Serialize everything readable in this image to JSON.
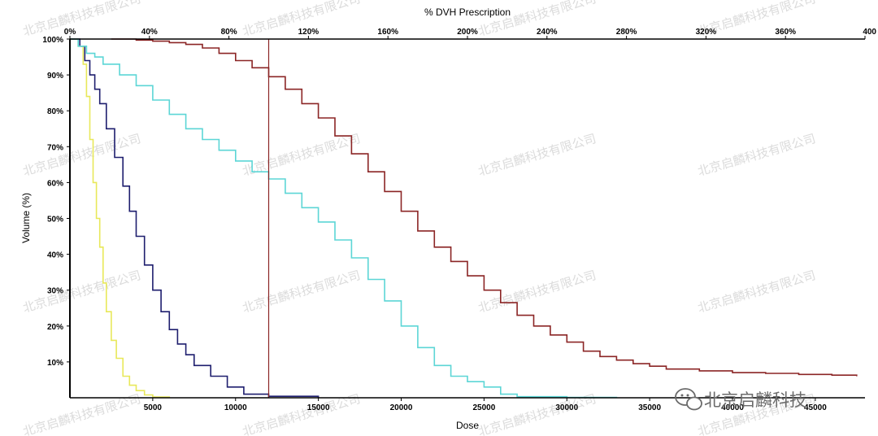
{
  "chart_data": {
    "type": "line",
    "xlabel": "Dose",
    "ylabel": "Volume (%)",
    "top_axis_label": "% DVH Prescription",
    "xlim": [
      0,
      48000
    ],
    "ylim": [
      0,
      100
    ],
    "xticks": [
      {
        "value": 5000,
        "label": "5000"
      },
      {
        "value": 10000,
        "label": "10000"
      },
      {
        "value": 15000,
        "label": "15000"
      },
      {
        "value": 20000,
        "label": "20000"
      },
      {
        "value": 25000,
        "label": "25000"
      },
      {
        "value": 30000,
        "label": "30000"
      },
      {
        "value": 35000,
        "label": "35000"
      },
      {
        "value": 40000,
        "label": "40000"
      },
      {
        "value": 45000,
        "label": "45000"
      }
    ],
    "yticks": [
      {
        "value": 10,
        "label": "10%"
      },
      {
        "value": 20,
        "label": "20%"
      },
      {
        "value": 30,
        "label": "30%"
      },
      {
        "value": 40,
        "label": "40%"
      },
      {
        "value": 50,
        "label": "50%"
      },
      {
        "value": 60,
        "label": "60%"
      },
      {
        "value": 70,
        "label": "70%"
      },
      {
        "value": 80,
        "label": "80%"
      },
      {
        "value": 90,
        "label": "90%"
      },
      {
        "value": 100,
        "label": "100%"
      }
    ],
    "top_ticks": [
      {
        "value": 0,
        "label": "0%"
      },
      {
        "value": 40,
        "label": "40%"
      },
      {
        "value": 80,
        "label": "80%"
      },
      {
        "value": 120,
        "label": "120%"
      },
      {
        "value": 160,
        "label": "160%"
      },
      {
        "value": 200,
        "label": "200%"
      },
      {
        "value": 240,
        "label": "240%"
      },
      {
        "value": 280,
        "label": "280%"
      },
      {
        "value": 320,
        "label": "320%"
      },
      {
        "value": 360,
        "label": "360%"
      },
      {
        "value": 400,
        "label": "400"
      }
    ],
    "top_axis_max_percent": 400,
    "prescription_line": {
      "x": 12000,
      "color": "#8b2525"
    },
    "series": [
      {
        "color": "#e8e85a",
        "x": [
          0,
          500,
          800,
          1000,
          1200,
          1400,
          1600,
          1800,
          2000,
          2200,
          2500,
          2800,
          3200,
          3600,
          4000,
          4500,
          5000,
          6000
        ],
        "y": [
          100,
          98,
          93,
          84,
          72,
          60,
          50,
          42,
          32,
          24,
          16,
          11,
          6,
          3.5,
          2,
          0.8,
          0.2,
          0
        ]
      },
      {
        "color": "#1e1e6e",
        "x": [
          0,
          600,
          900,
          1200,
          1500,
          1800,
          2200,
          2700,
          3200,
          3600,
          4000,
          4500,
          5000,
          5500,
          6000,
          6500,
          7000,
          7500,
          8500,
          9500,
          10500,
          12000,
          15000
        ],
        "y": [
          100,
          98,
          94,
          90,
          86,
          82,
          75,
          67,
          59,
          52,
          45,
          37,
          30,
          24,
          19,
          15,
          12,
          9,
          6,
          3,
          1,
          0.4,
          0
        ]
      },
      {
        "color": "#5cd6d6",
        "x": [
          0,
          500,
          1000,
          1500,
          2000,
          3000,
          4000,
          5000,
          6000,
          7000,
          8000,
          9000,
          10000,
          11000,
          12000,
          13000,
          14000,
          15000,
          16000,
          17000,
          18000,
          19000,
          20000,
          21000,
          22000,
          23000,
          24000,
          25000,
          26000,
          27000,
          30000,
          33000
        ],
        "y": [
          100,
          98,
          96,
          95,
          93,
          90,
          87,
          83,
          79,
          75,
          72,
          69,
          66,
          63,
          61,
          57,
          53,
          49,
          44,
          39,
          33,
          27,
          20,
          14,
          9,
          6,
          4.5,
          3,
          1,
          0.3,
          0.1,
          0
        ]
      },
      {
        "color": "#8b2525",
        "x": [
          2500,
          4000,
          5000,
          6000,
          7000,
          8000,
          9000,
          10000,
          11000,
          12000,
          13000,
          14000,
          15000,
          16000,
          17000,
          18000,
          19000,
          20000,
          21000,
          22000,
          23000,
          24000,
          25000,
          26000,
          27000,
          28000,
          29000,
          30000,
          31000,
          32000,
          33000,
          34000,
          35000,
          36000,
          38000,
          40000,
          42000,
          44000,
          46000,
          47500
        ],
        "y": [
          100,
          99.7,
          99.4,
          99,
          98.5,
          97.5,
          96,
          94,
          92,
          89.5,
          86,
          82,
          78,
          73,
          68,
          63,
          57.5,
          52,
          46.5,
          42,
          38,
          34,
          30,
          26.5,
          23,
          20,
          17.5,
          15.5,
          13,
          11.5,
          10.5,
          9.5,
          8.8,
          8,
          7.5,
          7,
          6.8,
          6.5,
          6.3,
          6
        ]
      }
    ]
  },
  "watermark": {
    "text": "北京启麟科技有限公司",
    "brand_text": "北京启麟科技",
    "brand_icon": "wechat-icon"
  }
}
